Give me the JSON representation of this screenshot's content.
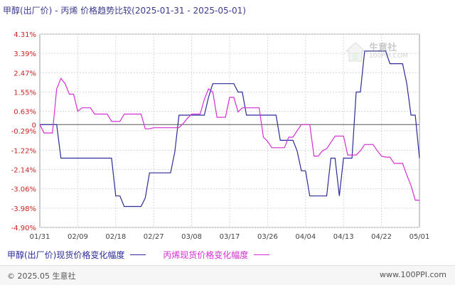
{
  "title": "甲醇(出厂价) - 丙烯 价格趋势比较(2025-01-31 - 2025-05-01)",
  "watermark": {
    "name": "生意社",
    "url": "100PPI.COM"
  },
  "footer": {
    "copyright": "© 2025.05 生意社",
    "site": "www.100PPI.com"
  },
  "chart_data": {
    "type": "line",
    "title": "甲醇(出厂价) - 丙烯 价格趋势比较(2025-01-31 - 2025-05-01)",
    "y_ticks": [
      "4.31%",
      "3.39%",
      "2.47%",
      "1.55%",
      "0.63%",
      "0",
      "-0.29%",
      "-1.22%",
      "-2.14%",
      "-3.06%",
      "-3.98%",
      "-4.90%"
    ],
    "y_tick_values": [
      4.31,
      3.39,
      2.47,
      1.55,
      0.63,
      0,
      -0.29,
      -1.22,
      -2.14,
      -3.06,
      -3.98,
      -4.9
    ],
    "ylim": [
      -4.9,
      4.31
    ],
    "x_ticks": [
      "01/31",
      "02/09",
      "02/18",
      "02/27",
      "03/08",
      "03/17",
      "03/26",
      "04/04",
      "04/13",
      "04/22",
      "05/01"
    ],
    "x": [
      "01/31",
      "02/01",
      "02/02",
      "02/03",
      "02/04",
      "02/05",
      "02/06",
      "02/07",
      "02/08",
      "02/09",
      "02/10",
      "02/11",
      "02/12",
      "02/13",
      "02/14",
      "02/15",
      "02/16",
      "02/17",
      "02/18",
      "02/19",
      "02/20",
      "02/21",
      "02/22",
      "02/23",
      "02/24",
      "02/25",
      "02/26",
      "02/27",
      "02/28",
      "03/01",
      "03/02",
      "03/03",
      "03/04",
      "03/05",
      "03/06",
      "03/07",
      "03/08",
      "03/09",
      "03/10",
      "03/11",
      "03/12",
      "03/13",
      "03/14",
      "03/15",
      "03/16",
      "03/17",
      "03/18",
      "03/19",
      "03/20",
      "03/21",
      "03/22",
      "03/23",
      "03/24",
      "03/25",
      "03/26",
      "03/27",
      "03/28",
      "03/29",
      "03/30",
      "03/31",
      "04/01",
      "04/02",
      "04/03",
      "04/04",
      "04/05",
      "04/06",
      "04/07",
      "04/08",
      "04/09",
      "04/10",
      "04/11",
      "04/12",
      "04/13",
      "04/14",
      "04/15",
      "04/16",
      "04/17",
      "04/18",
      "04/19",
      "04/20",
      "04/21",
      "04/22",
      "04/23",
      "04/24",
      "04/25",
      "04/26",
      "04/27",
      "04/28",
      "04/29",
      "04/30",
      "05/01"
    ],
    "series": [
      {
        "name": "甲醇(出厂价)现货价格变化幅度",
        "color": "#2b2b9a",
        "values": [
          0.0,
          0.0,
          0.0,
          0.0,
          0.0,
          -1.6,
          -1.6,
          -1.6,
          -1.6,
          -1.6,
          -1.6,
          -1.6,
          -1.6,
          -1.6,
          -1.6,
          -1.6,
          -1.6,
          -1.6,
          -3.4,
          -3.4,
          -3.9,
          -3.9,
          -3.9,
          -3.9,
          -3.9,
          -3.5,
          -2.3,
          -2.3,
          -2.3,
          -2.3,
          -2.3,
          -2.3,
          -1.3,
          0.45,
          0.45,
          0.45,
          0.45,
          0.45,
          0.45,
          0.45,
          1.3,
          1.95,
          1.95,
          1.95,
          1.95,
          1.95,
          1.95,
          1.55,
          1.55,
          0.45,
          0.45,
          0.45,
          0.45,
          0.45,
          0.45,
          0.45,
          0.45,
          -0.75,
          -0.75,
          -0.75,
          -0.75,
          -1.25,
          -2.2,
          -2.2,
          -3.4,
          -3.4,
          -3.4,
          -3.4,
          -3.4,
          -1.6,
          -1.6,
          -3.4,
          -1.6,
          -1.6,
          -1.6,
          1.55,
          1.55,
          3.5,
          3.5,
          3.5,
          3.5,
          3.5,
          3.5,
          2.9,
          2.9,
          2.9,
          2.9,
          1.95,
          0.45,
          0.45,
          -1.6
        ]
      },
      {
        "name": "丙烯现货价格变化幅度",
        "color": "#d42fd4",
        "values": [
          0.0,
          -0.4,
          -0.4,
          -0.4,
          1.7,
          2.2,
          1.95,
          1.45,
          1.45,
          0.63,
          0.8,
          0.8,
          0.8,
          0.5,
          0.5,
          0.5,
          0.5,
          0.15,
          0.15,
          0.15,
          0.5,
          0.5,
          0.5,
          0.5,
          0.5,
          -0.2,
          -0.2,
          -0.15,
          -0.15,
          -0.15,
          -0.15,
          -0.15,
          -0.15,
          -0.15,
          0.05,
          0.3,
          0.5,
          0.5,
          0.5,
          1.2,
          1.7,
          1.55,
          0.35,
          0.35,
          0.35,
          1.3,
          1.3,
          0.6,
          0.8,
          0.8,
          0.8,
          0.8,
          0.8,
          -0.6,
          -0.8,
          -1.1,
          -1.1,
          -1.1,
          -1.1,
          -0.6,
          -0.6,
          -0.3,
          0.0,
          0.0,
          0.0,
          -1.5,
          -1.5,
          -1.25,
          -1.15,
          -0.85,
          -0.55,
          -0.55,
          -0.55,
          -1.45,
          -1.45,
          -1.45,
          -1.25,
          -0.95,
          -0.95,
          -0.95,
          -1.25,
          -1.5,
          -1.55,
          -1.55,
          -1.85,
          -1.85,
          -1.85,
          -2.4,
          -2.9,
          -3.6,
          -3.6
        ]
      }
    ],
    "grid": true,
    "legend": "bottom"
  }
}
